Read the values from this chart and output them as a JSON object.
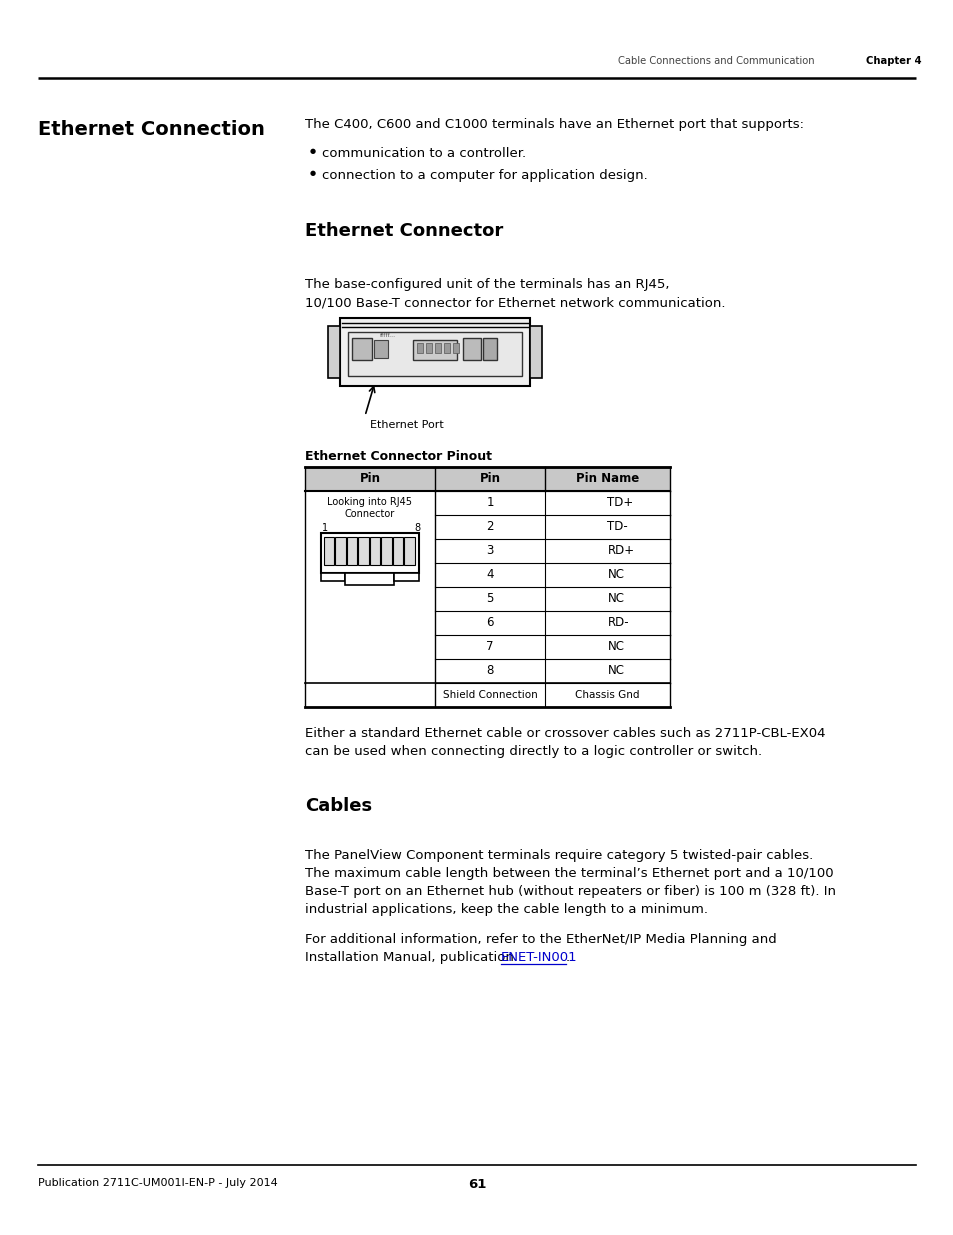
{
  "page_title_left": "Cable Connections and Communication",
  "page_title_right": "Chapter 4",
  "section_heading": "Ethernet Connection",
  "intro_text": "The C400, C600 and C1000 terminals have an Ethernet port that supports:",
  "bullet1": "communication to a controller.",
  "bullet2": "connection to a computer for application design.",
  "sub_heading": "Ethernet Connector",
  "sub_text_line1": "The base-configured unit of the terminals has an RJ45,",
  "sub_text_line2": "10/100 Base-T connector for Ethernet network communication.",
  "ethernet_port_label": "Ethernet Port",
  "table_heading": "Ethernet Connector Pinout",
  "table_col1": "Pin",
  "table_col2": "Pin",
  "table_col3": "Pin Name",
  "table_rows": [
    [
      "1",
      "TD+"
    ],
    [
      "2",
      "TD-"
    ],
    [
      "3",
      "RD+"
    ],
    [
      "4",
      "NC"
    ],
    [
      "5",
      "NC"
    ],
    [
      "6",
      "RD-"
    ],
    [
      "7",
      "NC"
    ],
    [
      "8",
      "NC"
    ],
    [
      "Shield Connection",
      "Chassis Gnd"
    ]
  ],
  "after_table_line1": "Either a standard Ethernet cable or crossover cables such as 2711P-CBL-EX04",
  "after_table_line2": "can be used when connecting directly to a logic controller or switch.",
  "cables_heading": "Cables",
  "cables_line1": "The PanelView Component terminals require category 5 twisted-pair cables.",
  "cables_line2": "The maximum cable length between the terminal’s Ethernet port and a 10/100",
  "cables_line3": "Base-T port on an Ethernet hub (without repeaters or fiber) is 100 m (328 ft). In",
  "cables_line4": "industrial applications, keep the cable length to a minimum.",
  "cables_line5": "For additional information, refer to the EtherNet/IP Media Planning and",
  "cables_line6": "Installation Manual, publication ",
  "cables_link": "ENET-IN001",
  "cables_end": ".",
  "footer_left": "Publication 2711C-UM001I-EN-P - July 2014",
  "footer_page": "61",
  "bg_color": "#ffffff",
  "text_color": "#000000",
  "link_color": "#0000cc"
}
